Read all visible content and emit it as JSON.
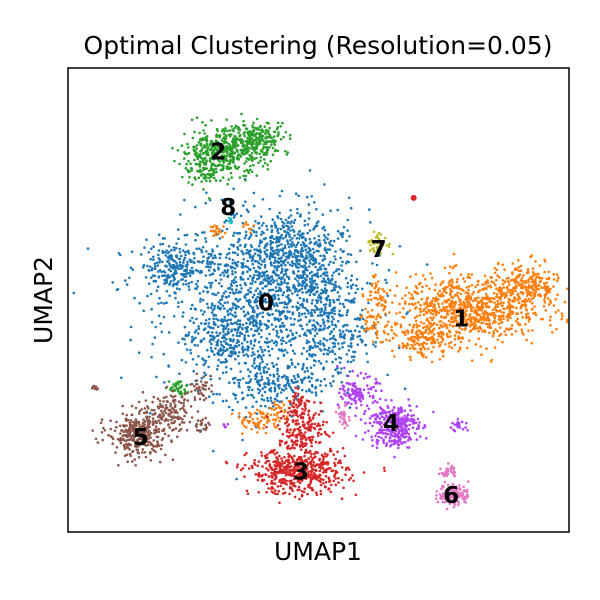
{
  "chart_data": {
    "type": "scatter",
    "title": "Optimal Clustering (Resolution=0.05)",
    "xlabel": "UMAP1",
    "ylabel": "UMAP2",
    "xlim": [
      0,
      100
    ],
    "ylim": [
      0,
      100
    ],
    "grid": false,
    "legend": "on data",
    "series": [
      {
        "name": "0",
        "color": "#1f77b4",
        "center": [
          39.5,
          49.5
        ],
        "label_at": [
          39.5,
          49.5
        ],
        "blobs": [
          [
            39.5,
            50,
            17,
            16,
            1300
          ],
          [
            21,
            57,
            6,
            4,
            220
          ],
          [
            44,
            62,
            7,
            6,
            250
          ],
          [
            41,
            32,
            9,
            4,
            180
          ],
          [
            52,
            43,
            6,
            7,
            170
          ],
          [
            31,
            42,
            6,
            5,
            160
          ],
          [
            48,
            55,
            6,
            5,
            150
          ]
        ]
      },
      {
        "name": "1",
        "color": "#ff7f0e",
        "center": [
          78.5,
          46
        ],
        "label_at": [
          78.5,
          46
        ],
        "blobs": [
          [
            80,
            48,
            12,
            6,
            800
          ],
          [
            92,
            53,
            5,
            4,
            220
          ],
          [
            71,
            41,
            5,
            3,
            140
          ],
          [
            61.5,
            45,
            3,
            3,
            50
          ],
          [
            62,
            52,
            2,
            3,
            40
          ],
          [
            38,
            24,
            4,
            2,
            60
          ],
          [
            42,
            26,
            2,
            2,
            30
          ],
          [
            30,
            65,
            2,
            1,
            20
          ],
          [
            36,
            66,
            1,
            1,
            8
          ]
        ]
      },
      {
        "name": "2",
        "color": "#2ca02c",
        "center": [
          30,
          82
        ],
        "label_at": [
          30,
          82
        ],
        "blobs": [
          [
            31,
            82,
            7,
            4,
            420
          ],
          [
            38,
            85,
            5,
            3,
            200
          ],
          [
            28,
            78,
            4,
            3,
            80
          ],
          [
            22,
            31,
            1.5,
            1.5,
            35
          ]
        ]
      },
      {
        "name": "3",
        "color": "#d62728",
        "center": [
          46.5,
          13
        ],
        "label_at": [
          46.5,
          13
        ],
        "blobs": [
          [
            46,
            13,
            8,
            4,
            520
          ],
          [
            47,
            22,
            4,
            4,
            180
          ],
          [
            46,
            28,
            2,
            2,
            40
          ]
        ]
      },
      {
        "name": "4",
        "color": "#b042f6",
        "center": [
          64.5,
          23.5
        ],
        "label_at": [
          64.5,
          23.5
        ],
        "blobs": [
          [
            65,
            23,
            4,
            4,
            320
          ],
          [
            58,
            30,
            3,
            3,
            120
          ],
          [
            78,
            23,
            1.5,
            1,
            20
          ],
          [
            31.5,
            23,
            0.5,
            0.5,
            5
          ]
        ]
      },
      {
        "name": "5",
        "color": "#8c564b",
        "center": [
          14.5,
          20.5
        ],
        "label_at": [
          14.5,
          20.5
        ],
        "blobs": [
          [
            14,
            21,
            5,
            4,
            320
          ],
          [
            20,
            26,
            4,
            3,
            120
          ],
          [
            26,
            31,
            2,
            2,
            40
          ],
          [
            27,
            23,
            1,
            1.5,
            20
          ],
          [
            5,
            31,
            0.8,
            0.5,
            8
          ]
        ]
      },
      {
        "name": "6",
        "color": "#e377c2",
        "center": [
          76.5,
          8
        ],
        "label_at": [
          76.5,
          8
        ],
        "blobs": [
          [
            77,
            8,
            2.5,
            2,
            130
          ],
          [
            76,
            13,
            1.2,
            1.2,
            30
          ],
          [
            55,
            25,
            1,
            2,
            30
          ]
        ]
      },
      {
        "name": "7",
        "color": "#bcbd22",
        "center": [
          62,
          61
        ],
        "label_at": [
          62,
          61
        ],
        "blobs": [
          [
            62,
            62,
            2,
            2,
            40
          ]
        ]
      },
      {
        "name": "8",
        "color": "#17becf",
        "center": [
          32,
          70
        ],
        "label_at": [
          32,
          70
        ],
        "blobs": [
          [
            32.5,
            67,
            0.6,
            0.6,
            6
          ]
        ]
      }
    ],
    "extra_points": [
      {
        "series": "1",
        "x": 69,
        "y": 72,
        "color": "#d62728"
      }
    ]
  }
}
